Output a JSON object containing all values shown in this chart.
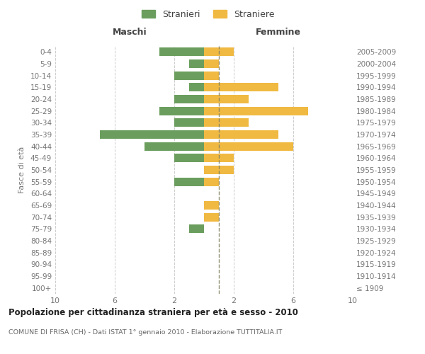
{
  "age_groups": [
    "100+",
    "95-99",
    "90-94",
    "85-89",
    "80-84",
    "75-79",
    "70-74",
    "65-69",
    "60-64",
    "55-59",
    "50-54",
    "45-49",
    "40-44",
    "35-39",
    "30-34",
    "25-29",
    "20-24",
    "15-19",
    "10-14",
    "5-9",
    "0-4"
  ],
  "birth_years": [
    "≤ 1909",
    "1910-1914",
    "1915-1919",
    "1920-1924",
    "1925-1929",
    "1930-1934",
    "1935-1939",
    "1940-1944",
    "1945-1949",
    "1950-1954",
    "1955-1959",
    "1960-1964",
    "1965-1969",
    "1970-1974",
    "1975-1979",
    "1980-1984",
    "1985-1989",
    "1990-1994",
    "1995-1999",
    "2000-2004",
    "2005-2009"
  ],
  "maschi": [
    0,
    0,
    0,
    0,
    0,
    1,
    0,
    0,
    0,
    2,
    0,
    2,
    4,
    7,
    2,
    3,
    2,
    1,
    2,
    1,
    3
  ],
  "femmine": [
    0,
    0,
    0,
    0,
    0,
    0,
    1,
    1,
    0,
    1,
    2,
    2,
    6,
    5,
    3,
    7,
    3,
    5,
    1,
    1,
    2
  ],
  "color_maschi": "#6b9e5e",
  "color_femmine": "#f0b942",
  "title": "Popolazione per cittadinanza straniera per età e sesso - 2010",
  "subtitle": "COMUNE DI FRISA (CH) - Dati ISTAT 1° gennaio 2010 - Elaborazione TUTTITALIA.IT",
  "ylabel_left": "Fasce di età",
  "header_left": "Maschi",
  "header_right": "Femmine",
  "legend_maschi": "Stranieri",
  "legend_femmine": "Straniere",
  "xlim": 10,
  "background_color": "#ffffff",
  "grid_color": "#cccccc",
  "center_line_color": "#808060",
  "tick_label_color": "#777777",
  "header_color": "#444444",
  "title_color": "#222222",
  "subtitle_color": "#666666"
}
